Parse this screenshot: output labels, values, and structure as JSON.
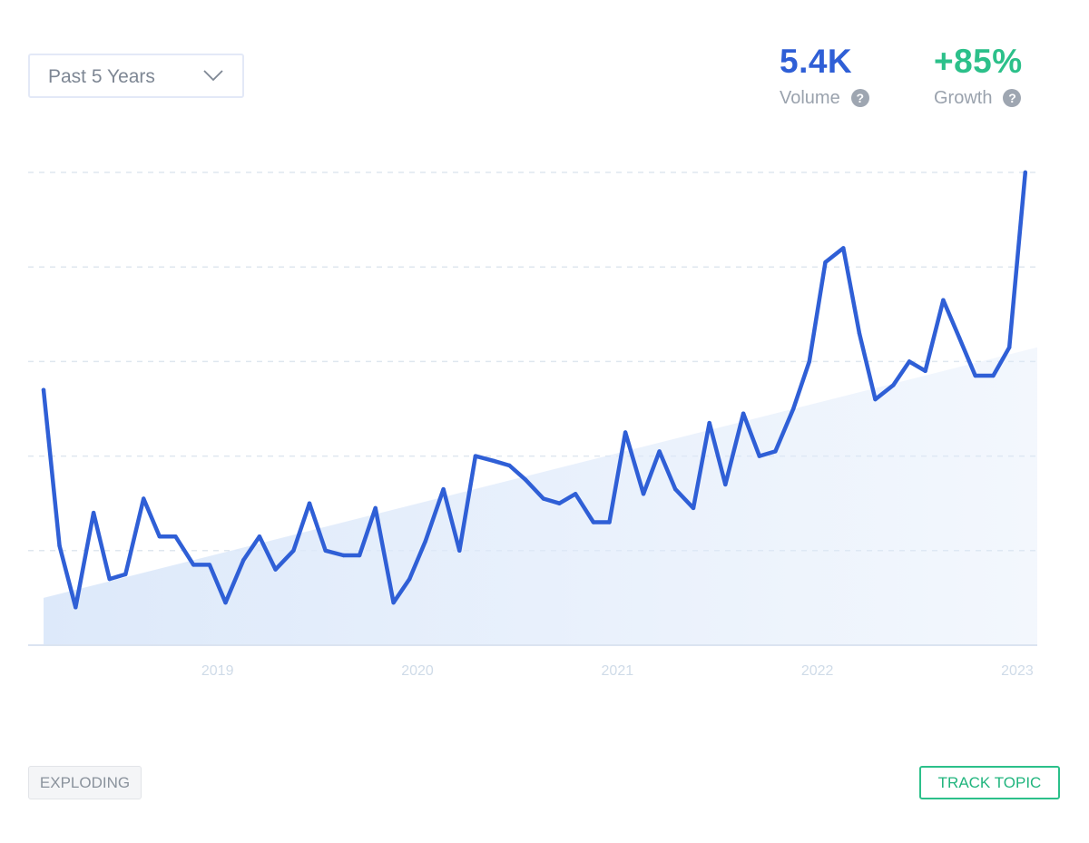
{
  "controls": {
    "range_label": "Past 5 Years",
    "badge_label": "EXPLODING",
    "track_label": "TRACK TOPIC"
  },
  "stats": {
    "volume": {
      "value": "5.4K",
      "label": "Volume",
      "help_icon": "question-icon"
    },
    "growth": {
      "value": "+85%",
      "label": "Growth",
      "help_icon": "question-icon"
    }
  },
  "colors": {
    "line": "#2f5fd6",
    "volume": "#2f5fd6",
    "growth": "#2cc08a",
    "trend_fill_start": "#dde9fa",
    "gridline": "#dfe7ef",
    "tick_label": "#cfdbe8"
  },
  "chart_data": {
    "type": "line",
    "x_tick_labels": [
      "2019",
      "2020",
      "2021",
      "2022",
      "2023"
    ],
    "x_tick_positions": [
      2019,
      2020,
      2021,
      2022,
      2023
    ],
    "xlim": [
      2018.13,
      2023.1
    ],
    "ylim": [
      0,
      100
    ],
    "y_gridlines": [
      20,
      40,
      60,
      80,
      100
    ],
    "y_tick_labels": [],
    "grid": true,
    "legend": "none",
    "series": [
      {
        "x": [
          2018.13,
          2018.21,
          2018.29,
          2018.38,
          2018.46,
          2018.54,
          2018.63,
          2018.71,
          2018.79,
          2018.88,
          2018.96,
          2019.04,
          2019.13,
          2019.21,
          2019.29,
          2019.38,
          2019.46,
          2019.54,
          2019.63,
          2019.71,
          2019.79,
          2019.88,
          2019.96,
          2020.04,
          2020.13,
          2020.21,
          2020.29,
          2020.38,
          2020.46,
          2020.54,
          2020.63,
          2020.71,
          2020.79,
          2020.88,
          2020.96,
          2021.04,
          2021.13,
          2021.21,
          2021.29,
          2021.38,
          2021.46,
          2021.54,
          2021.63,
          2021.71,
          2021.79,
          2021.88,
          2021.96,
          2022.04,
          2022.13,
          2022.21,
          2022.29,
          2022.38,
          2022.46,
          2022.54,
          2022.63,
          2022.71,
          2022.79,
          2022.88,
          2022.96,
          2023.04
        ],
        "values": [
          54,
          21,
          8,
          28,
          14,
          15,
          31,
          23,
          23,
          17,
          17,
          9,
          18,
          23,
          16,
          20,
          30,
          20,
          19,
          19,
          29,
          9,
          14,
          22,
          33,
          20,
          40,
          39,
          38,
          35,
          31,
          30,
          32,
          26,
          26,
          45,
          32,
          41,
          33,
          29,
          47,
          34,
          49,
          40,
          41,
          50,
          60,
          81,
          84,
          66,
          52,
          55,
          60,
          58,
          73,
          65,
          57,
          57,
          63,
          100
        ]
      }
    ],
    "trend": {
      "type": "area",
      "start": 10,
      "end": 63
    }
  }
}
